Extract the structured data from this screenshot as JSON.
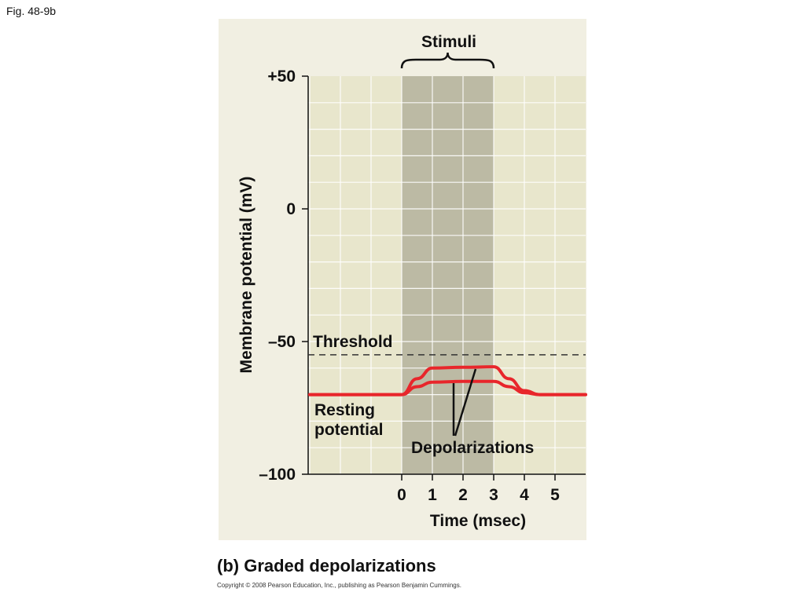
{
  "figure_label": "Fig. 48-9b",
  "caption": "(b) Graded depolarizations",
  "copyright": "Copyright © 2008 Pearson Education, Inc., publishing as Pearson Benjamin Cummings.",
  "colors": {
    "panel_bg": "#f1efe2",
    "grid_bg": "#e8e6cc",
    "stimulus_band": "#bcbaa4",
    "trace": "#e8262b",
    "threshold_line": "#333333"
  },
  "chart_data": {
    "type": "line",
    "xlabel": "Time (msec)",
    "ylabel": "Membrane potential (mV)",
    "xlim": [
      -3,
      6
    ],
    "ylim": [
      -100,
      50
    ],
    "x_ticks": [
      0,
      1,
      2,
      3,
      4,
      5
    ],
    "y_ticks": [
      {
        "value": 50,
        "label": "+50"
      },
      {
        "value": 0,
        "label": "0"
      },
      {
        "value": -50,
        "label": "–50"
      },
      {
        "value": -100,
        "label": "–100"
      }
    ],
    "grid": true,
    "stimulus": {
      "label": "Stimuli",
      "x_range": [
        0,
        3
      ]
    },
    "threshold": {
      "label": "Threshold",
      "value": -55
    },
    "series": [
      {
        "x": [
          -3,
          0,
          0.5,
          1,
          2,
          3,
          3.5,
          4,
          4.5,
          6
        ],
        "y": [
          -70,
          -70,
          -64,
          -60,
          -59.7,
          -59.5,
          -64,
          -68.5,
          -70,
          -70
        ]
      },
      {
        "x": [
          -3,
          0,
          0.5,
          1,
          2,
          3,
          3.5,
          4,
          4.5,
          6
        ],
        "y": [
          -70,
          -70,
          -67,
          -65.3,
          -65,
          -65,
          -67,
          -69.3,
          -70,
          -70
        ]
      }
    ],
    "annotations": [
      {
        "text": [
          "Resting",
          "potential"
        ]
      },
      {
        "text": [
          "Depolarizations"
        ]
      }
    ]
  }
}
